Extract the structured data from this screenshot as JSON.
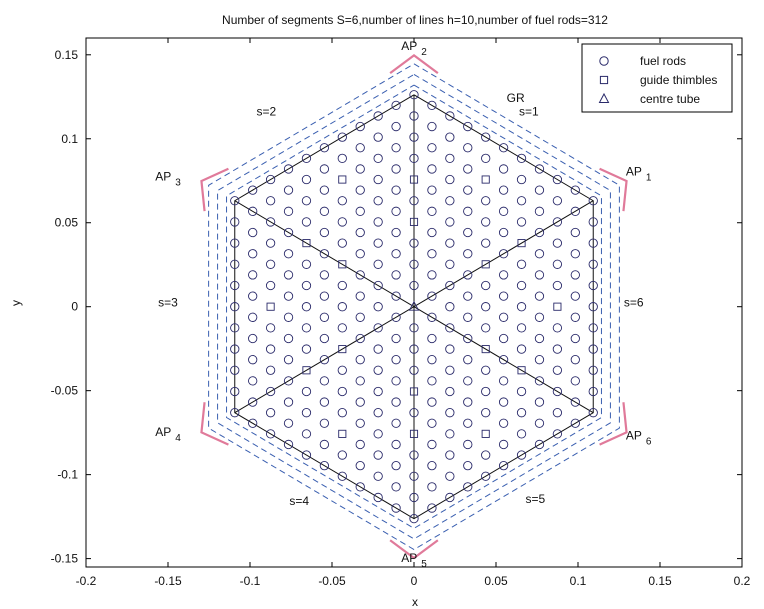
{
  "chart_data": {
    "type": "scatter",
    "title": "Number of segments S=6,number of lines h=10,number of fuel rods=312",
    "xlabel": "x",
    "ylabel": "y",
    "xlim": [
      -0.2,
      0.2
    ],
    "ylim": [
      -0.155,
      0.16
    ],
    "xticks": [
      -0.2,
      -0.15,
      -0.1,
      -0.05,
      0,
      0.05,
      0.1,
      0.15,
      0.2
    ],
    "yticks": [
      -0.15,
      -0.1,
      -0.05,
      0,
      0.05,
      0.1,
      0.15
    ],
    "xtick_labels": [
      "-0.2",
      "-0.15",
      "-0.1",
      "-0.05",
      "0",
      "0.05",
      "0.1",
      "0.15",
      "0.2"
    ],
    "ytick_labels": [
      "-0.15",
      "-0.1",
      "-0.05",
      "0",
      "0.05",
      "0.1",
      "0.15"
    ],
    "lattice": {
      "pitch": 0.01262,
      "rings": 10,
      "segments": 6,
      "fuel_rod_count": 312,
      "guide_thimble_count": 18,
      "centre_tube": [
        0,
        0
      ]
    },
    "series": [
      {
        "name": "fuel rods",
        "marker": "circle"
      },
      {
        "name": "guide thimbles",
        "marker": "square"
      },
      {
        "name": "centre tube",
        "marker": "triangle"
      }
    ],
    "guide_thimbles": [
      [
        0,
        0.0505
      ],
      [
        0,
        0.0757
      ],
      [
        0.0437,
        0.0757
      ],
      [
        -0.0437,
        0.0757
      ],
      [
        0.0656,
        0.0379
      ],
      [
        -0.0656,
        0.0379
      ],
      [
        0.0656,
        -0.0379
      ],
      [
        -0.0656,
        -0.0379
      ],
      [
        0.0874,
        0
      ],
      [
        -0.0874,
        0
      ],
      [
        0.0437,
        -0.0757
      ],
      [
        -0.0437,
        -0.0757
      ],
      [
        0,
        -0.0505
      ],
      [
        0,
        -0.0757
      ],
      [
        0.0437,
        0.0252
      ],
      [
        -0.0437,
        0.0252
      ],
      [
        0.0437,
        -0.0252
      ],
      [
        -0.0437,
        -0.0252
      ]
    ],
    "annotations": [
      {
        "text": "AP",
        "sub": "2",
        "x": 0.0,
        "y": 0.153
      },
      {
        "text": "AP",
        "sub": "1",
        "x": 0.137,
        "y": 0.078
      },
      {
        "text": "AP",
        "sub": "3",
        "x": -0.15,
        "y": 0.075
      },
      {
        "text": "AP",
        "sub": "4",
        "x": -0.15,
        "y": -0.077
      },
      {
        "text": "AP",
        "sub": "6",
        "x": 0.137,
        "y": -0.079
      },
      {
        "text": "AP",
        "sub": "5",
        "x": 0.0,
        "y": -0.152
      },
      {
        "text": "GR",
        "x": 0.062,
        "y": 0.122
      },
      {
        "text": "s=1",
        "x": 0.07,
        "y": 0.114
      },
      {
        "text": "s=2",
        "x": -0.09,
        "y": 0.114
      },
      {
        "text": "s=3",
        "x": -0.15,
        "y": 0.0
      },
      {
        "text": "s=6",
        "x": 0.134,
        "y": 0.0
      },
      {
        "text": "s=4",
        "x": -0.07,
        "y": -0.118
      },
      {
        "text": "s=5",
        "x": 0.074,
        "y": -0.117
      }
    ],
    "legend_position": "top-right",
    "grid": false,
    "colors": {
      "markers": "#2a2a6a",
      "segment_lines": "#111111",
      "dashed_hex": "#3a5fb0",
      "ap_brackets": "#e07a9a"
    }
  }
}
